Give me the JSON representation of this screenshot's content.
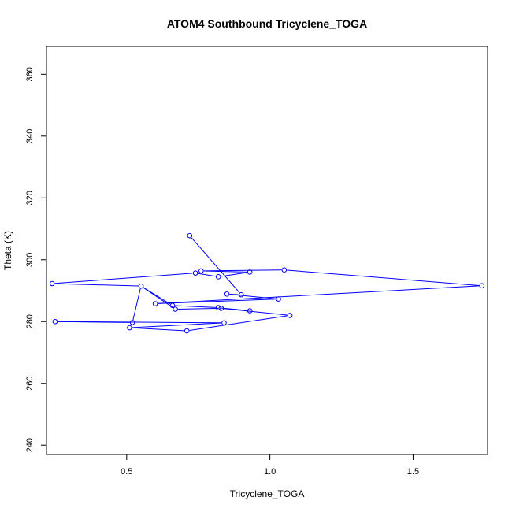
{
  "chart_data": {
    "type": "line",
    "title": "ATOM4 Southbound Tricyclene_TOGA",
    "xlabel": "Tricyclene_TOGA",
    "ylabel": "Theta (K)",
    "xlim": [
      0.22,
      1.76
    ],
    "ylim": [
      237,
      369
    ],
    "xticks": [
      0.5,
      1.0,
      1.5
    ],
    "xtick_labels": [
      "0.5",
      "1.0",
      "1.5"
    ],
    "yticks": [
      240,
      260,
      280,
      300,
      320,
      340,
      360
    ],
    "ytick_labels": [
      "240",
      "260",
      "280",
      "300",
      "320",
      "340",
      "360"
    ],
    "grid": false,
    "markers": "open-circle",
    "line_color": "#0000ff",
    "series": [
      {
        "x": [
          0.72,
          0.9,
          0.85,
          1.03,
          0.6,
          1.74,
          1.05,
          0.76,
          0.93,
          0.82,
          0.74,
          0.24,
          0.55,
          0.67,
          0.83,
          1.07,
          0.71,
          0.51,
          0.84,
          0.25,
          0.52,
          0.55,
          0.66,
          0.82,
          0.93
        ],
        "y": [
          307.8,
          288.7,
          288.9,
          287.3,
          285.8,
          291.6,
          296.7,
          296.4,
          296.0,
          294.5,
          295.7,
          292.3,
          291.5,
          284.0,
          284.3,
          282.0,
          277.0,
          278.0,
          279.6,
          280.0,
          279.7,
          291.5,
          285.2,
          284.5,
          283.5
        ]
      }
    ]
  }
}
